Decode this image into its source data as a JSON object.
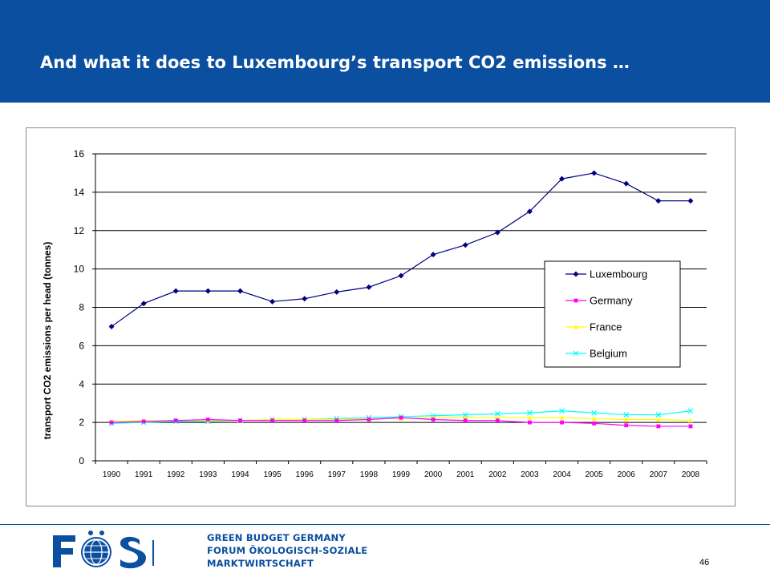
{
  "slide": {
    "title": "And what it does to Luxembourg’s transport CO2 emissions …",
    "page_number": "46",
    "colors": {
      "header": "#0a4fa0",
      "accent": "#0a4fa0"
    }
  },
  "logo": {
    "mark": "FÖS",
    "lines": [
      "GREEN BUDGET GERMANY",
      "FORUM ÖKOLOGISCH-SOZIALE",
      "MARKTWIRTSCHAFT"
    ],
    "icon": "globe-icon"
  },
  "chart_data": {
    "type": "line",
    "title": "",
    "xlabel": "",
    "ylabel": "transport CO2 emissions per head (tonnes)",
    "ylim": [
      0,
      16
    ],
    "yticks": [
      0,
      2,
      4,
      6,
      8,
      10,
      12,
      14,
      16
    ],
    "grid": true,
    "legend_position": "right",
    "categories": [
      "1990",
      "1991",
      "1992",
      "1993",
      "1994",
      "1995",
      "1996",
      "1997",
      "1998",
      "1999",
      "2000",
      "2001",
      "2002",
      "2003",
      "2004",
      "2005",
      "2006",
      "2007",
      "2008"
    ],
    "series": [
      {
        "name": "Luxembourg",
        "color": "#000080",
        "marker": "diamond",
        "values": [
          7.0,
          8.2,
          8.85,
          8.85,
          8.85,
          8.3,
          8.45,
          8.8,
          9.05,
          9.65,
          10.75,
          11.25,
          11.9,
          13.0,
          14.7,
          15.0,
          14.45,
          13.55,
          13.55
        ]
      },
      {
        "name": "Germany",
        "color": "#ff00ff",
        "marker": "square",
        "values": [
          2.0,
          2.05,
          2.1,
          2.15,
          2.1,
          2.1,
          2.1,
          2.1,
          2.15,
          2.25,
          2.15,
          2.1,
          2.1,
          2.0,
          2.0,
          1.95,
          1.85,
          1.8,
          1.8
        ]
      },
      {
        "name": "France",
        "color": "#ffff00",
        "marker": "triangle",
        "values": [
          2.05,
          2.1,
          2.1,
          2.1,
          2.1,
          2.15,
          2.15,
          2.15,
          2.2,
          2.2,
          2.25,
          2.25,
          2.25,
          2.25,
          2.25,
          2.2,
          2.15,
          2.15,
          2.1
        ]
      },
      {
        "name": "Belgium",
        "color": "#00ffff",
        "marker": "x",
        "values": [
          1.95,
          2.0,
          2.05,
          2.05,
          2.1,
          2.15,
          2.15,
          2.2,
          2.25,
          2.3,
          2.35,
          2.4,
          2.45,
          2.5,
          2.6,
          2.5,
          2.4,
          2.4,
          2.6
        ]
      }
    ]
  }
}
